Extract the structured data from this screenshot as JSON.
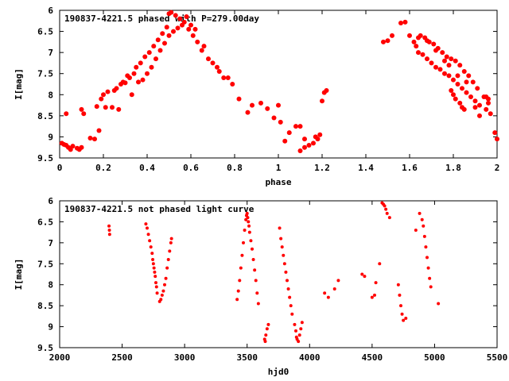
{
  "chart_data": [
    {
      "type": "scatter",
      "title": "190837-4221.5 phased with P=279.00day",
      "xlabel": "phase",
      "ylabel": "I[mag]",
      "xlim": [
        0,
        2
      ],
      "ylim": [
        9.5,
        6
      ],
      "y_inverted": true,
      "grid": false,
      "marker_color": "#ff0000",
      "marker": "filled-circle",
      "xticks": [
        "0",
        "0.2",
        "0.4",
        "0.6",
        "0.8",
        "1",
        "1.2",
        "1.4",
        "1.6",
        "1.8",
        "2"
      ],
      "yticks": [
        "6",
        "6.5",
        "7",
        "7.5",
        "8",
        "8.5",
        "9",
        "9.5"
      ],
      "series": [
        {
          "points": [
            [
              0.01,
              9.15
            ],
            [
              0.02,
              9.18
            ],
            [
              0.03,
              9.2
            ],
            [
              0.04,
              9.25
            ],
            [
              0.05,
              9.3
            ],
            [
              0.06,
              9.22
            ],
            [
              0.08,
              9.27
            ],
            [
              0.09,
              9.3
            ],
            [
              0.1,
              9.25
            ],
            [
              0.03,
              8.45
            ],
            [
              0.1,
              8.35
            ],
            [
              0.11,
              8.45
            ],
            [
              0.14,
              9.03
            ],
            [
              0.16,
              9.05
            ],
            [
              0.17,
              8.28
            ],
            [
              0.18,
              8.85
            ],
            [
              0.19,
              8.1
            ],
            [
              0.2,
              8.0
            ],
            [
              0.21,
              8.3
            ],
            [
              0.22,
              7.93
            ],
            [
              0.24,
              8.3
            ],
            [
              0.25,
              7.9
            ],
            [
              0.26,
              7.85
            ],
            [
              0.27,
              8.35
            ],
            [
              0.28,
              7.75
            ],
            [
              0.29,
              7.7
            ],
            [
              0.3,
              7.72
            ],
            [
              0.31,
              7.55
            ],
            [
              0.32,
              7.6
            ],
            [
              0.33,
              8.0
            ],
            [
              0.34,
              7.5
            ],
            [
              0.35,
              7.35
            ],
            [
              0.36,
              7.7
            ],
            [
              0.37,
              7.25
            ],
            [
              0.38,
              7.65
            ],
            [
              0.39,
              7.1
            ],
            [
              0.4,
              7.5
            ],
            [
              0.41,
              7.0
            ],
            [
              0.42,
              7.35
            ],
            [
              0.43,
              6.85
            ],
            [
              0.44,
              7.15
            ],
            [
              0.45,
              6.7
            ],
            [
              0.46,
              6.95
            ],
            [
              0.47,
              6.55
            ],
            [
              0.48,
              6.78
            ],
            [
              0.49,
              6.4
            ],
            [
              0.5,
              6.6
            ],
            [
              0.5,
              6.08
            ],
            [
              0.51,
              6.05
            ],
            [
              0.52,
              6.5
            ],
            [
              0.53,
              6.12
            ],
            [
              0.54,
              6.42
            ],
            [
              0.55,
              6.2
            ],
            [
              0.56,
              6.35
            ],
            [
              0.57,
              6.28
            ],
            [
              0.58,
              6.15
            ],
            [
              0.59,
              6.45
            ],
            [
              0.6,
              6.35
            ],
            [
              0.61,
              6.6
            ],
            [
              0.62,
              6.45
            ],
            [
              0.63,
              6.75
            ],
            [
              0.65,
              6.95
            ],
            [
              0.66,
              6.85
            ],
            [
              0.68,
              7.15
            ],
            [
              0.7,
              7.25
            ],
            [
              0.72,
              7.35
            ],
            [
              0.73,
              7.45
            ],
            [
              0.75,
              7.6
            ],
            [
              0.77,
              7.6
            ],
            [
              0.79,
              7.75
            ],
            [
              0.82,
              8.1
            ],
            [
              0.86,
              8.42
            ],
            [
              0.88,
              8.25
            ],
            [
              0.92,
              8.2
            ],
            [
              0.95,
              8.33
            ],
            [
              0.98,
              8.55
            ],
            [
              1.0,
              8.25
            ],
            [
              1.01,
              8.65
            ],
            [
              1.03,
              9.1
            ],
            [
              1.05,
              8.9
            ],
            [
              1.08,
              8.75
            ],
            [
              1.1,
              8.75
            ],
            [
              1.1,
              9.33
            ],
            [
              1.12,
              9.05
            ],
            [
              1.12,
              9.25
            ],
            [
              1.14,
              9.2
            ],
            [
              1.16,
              9.15
            ],
            [
              1.17,
              9.0
            ],
            [
              1.18,
              9.05
            ],
            [
              1.19,
              8.95
            ],
            [
              1.2,
              8.15
            ],
            [
              1.21,
              7.95
            ],
            [
              1.22,
              7.9
            ],
            [
              1.48,
              6.75
            ],
            [
              1.5,
              6.72
            ],
            [
              1.52,
              6.6
            ],
            [
              1.56,
              6.3
            ],
            [
              1.58,
              6.28
            ],
            [
              1.6,
              6.6
            ],
            [
              1.62,
              6.75
            ],
            [
              1.63,
              6.85
            ],
            [
              1.64,
              7.0
            ],
            [
              1.65,
              6.6
            ],
            [
              1.66,
              7.05
            ],
            [
              1.67,
              6.65
            ],
            [
              1.68,
              7.15
            ],
            [
              1.69,
              6.75
            ],
            [
              1.7,
              7.25
            ],
            [
              1.71,
              6.8
            ],
            [
              1.72,
              7.35
            ],
            [
              1.73,
              6.9
            ],
            [
              1.74,
              7.4
            ],
            [
              1.75,
              7.0
            ],
            [
              1.76,
              7.5
            ],
            [
              1.77,
              7.1
            ],
            [
              1.78,
              7.55
            ],
            [
              1.79,
              7.15
            ],
            [
              1.8,
              7.65
            ],
            [
              1.81,
              7.2
            ],
            [
              1.82,
              7.75
            ],
            [
              1.83,
              7.3
            ],
            [
              1.84,
              7.85
            ],
            [
              1.85,
              7.45
            ],
            [
              1.86,
              7.95
            ],
            [
              1.87,
              7.55
            ],
            [
              1.88,
              8.05
            ],
            [
              1.89,
              7.7
            ],
            [
              1.9,
              8.15
            ],
            [
              1.91,
              7.85
            ],
            [
              1.92,
              8.25
            ],
            [
              1.94,
              8.05
            ],
            [
              1.95,
              8.35
            ],
            [
              1.96,
              8.1
            ],
            [
              1.97,
              8.45
            ],
            [
              1.99,
              8.9
            ],
            [
              2.0,
              9.05
            ],
            [
              1.64,
              6.65
            ],
            [
              1.68,
              6.72
            ],
            [
              1.72,
              6.95
            ],
            [
              1.76,
              7.2
            ],
            [
              1.78,
              7.3
            ],
            [
              1.82,
              7.55
            ],
            [
              1.86,
              7.7
            ],
            [
              1.9,
              8.3
            ],
            [
              1.92,
              8.5
            ],
            [
              1.95,
              8.05
            ],
            [
              1.96,
              8.2
            ],
            [
              1.8,
              8.0
            ],
            [
              1.79,
              7.9
            ],
            [
              1.81,
              8.1
            ],
            [
              1.83,
              8.2
            ],
            [
              1.84,
              8.3
            ],
            [
              1.85,
              8.35
            ]
          ]
        }
      ]
    },
    {
      "type": "scatter",
      "title": "190837-4221.5 not phased light curve",
      "xlabel": "hjd0",
      "ylabel": "I[mag]",
      "xlim": [
        2000,
        5500
      ],
      "ylim": [
        9.5,
        6
      ],
      "y_inverted": true,
      "grid": false,
      "marker_color": "#ff0000",
      "marker": "filled-circle",
      "xticks": [
        "2000",
        "2500",
        "3000",
        "3500",
        "4000",
        "4500",
        "5000",
        "5500"
      ],
      "yticks": [
        "6",
        "6.5",
        "7",
        "7.5",
        "8",
        "8.5",
        "9",
        "9.5"
      ],
      "series": [
        {
          "points": [
            [
              2395,
              6.6
            ],
            [
              2398,
              6.7
            ],
            [
              2400,
              6.8
            ],
            [
              2690,
              6.55
            ],
            [
              2700,
              6.65
            ],
            [
              2710,
              6.8
            ],
            [
              2720,
              6.95
            ],
            [
              2730,
              7.1
            ],
            [
              2740,
              7.25
            ],
            [
              2745,
              7.4
            ],
            [
              2750,
              7.5
            ],
            [
              2755,
              7.6
            ],
            [
              2760,
              7.7
            ],
            [
              2765,
              7.8
            ],
            [
              2770,
              7.95
            ],
            [
              2775,
              8.05
            ],
            [
              2780,
              8.2
            ],
            [
              2800,
              8.4
            ],
            [
              2810,
              8.35
            ],
            [
              2820,
              8.25
            ],
            [
              2830,
              8.15
            ],
            [
              2840,
              8.0
            ],
            [
              2850,
              7.85
            ],
            [
              2860,
              7.6
            ],
            [
              2870,
              7.4
            ],
            [
              2880,
              7.2
            ],
            [
              2890,
              7.0
            ],
            [
              2895,
              6.9
            ],
            [
              3420,
              8.35
            ],
            [
              3430,
              8.15
            ],
            [
              3440,
              7.9
            ],
            [
              3450,
              7.6
            ],
            [
              3460,
              7.3
            ],
            [
              3470,
              7.0
            ],
            [
              3480,
              6.7
            ],
            [
              3490,
              6.45
            ],
            [
              3495,
              6.35
            ],
            [
              3500,
              6.3
            ],
            [
              3505,
              6.4
            ],
            [
              3510,
              6.5
            ],
            [
              3515,
              6.6
            ],
            [
              3520,
              6.75
            ],
            [
              3530,
              6.95
            ],
            [
              3540,
              7.15
            ],
            [
              3550,
              7.4
            ],
            [
              3560,
              7.65
            ],
            [
              3570,
              7.9
            ],
            [
              3580,
              8.2
            ],
            [
              3590,
              8.45
            ],
            [
              3640,
              9.3
            ],
            [
              3645,
              9.35
            ],
            [
              3650,
              9.2
            ],
            [
              3660,
              9.05
            ],
            [
              3670,
              8.95
            ],
            [
              3760,
              6.65
            ],
            [
              3770,
              6.9
            ],
            [
              3780,
              7.1
            ],
            [
              3790,
              7.3
            ],
            [
              3800,
              7.5
            ],
            [
              3810,
              7.7
            ],
            [
              3820,
              7.9
            ],
            [
              3830,
              8.1
            ],
            [
              3840,
              8.3
            ],
            [
              3850,
              8.5
            ],
            [
              3860,
              8.7
            ],
            [
              3880,
              8.95
            ],
            [
              3890,
              9.1
            ],
            [
              3895,
              9.25
            ],
            [
              3900,
              9.3
            ],
            [
              3910,
              9.35
            ],
            [
              3920,
              9.2
            ],
            [
              3930,
              9.05
            ],
            [
              3940,
              8.9
            ],
            [
              4120,
              8.2
            ],
            [
              4150,
              8.3
            ],
            [
              4200,
              8.1
            ],
            [
              4230,
              7.9
            ],
            [
              4420,
              7.75
            ],
            [
              4440,
              7.8
            ],
            [
              4500,
              8.3
            ],
            [
              4520,
              8.25
            ],
            [
              4530,
              7.95
            ],
            [
              4560,
              7.5
            ],
            [
              4580,
              6.05
            ],
            [
              4590,
              6.08
            ],
            [
              4600,
              6.12
            ],
            [
              4610,
              6.2
            ],
            [
              4620,
              6.3
            ],
            [
              4640,
              6.4
            ],
            [
              4710,
              8.0
            ],
            [
              4720,
              8.25
            ],
            [
              4730,
              8.5
            ],
            [
              4740,
              8.7
            ],
            [
              4750,
              8.85
            ],
            [
              4770,
              8.8
            ],
            [
              4850,
              6.7
            ],
            [
              4880,
              6.3
            ],
            [
              4900,
              6.45
            ],
            [
              4910,
              6.6
            ],
            [
              4920,
              6.85
            ],
            [
              4930,
              7.1
            ],
            [
              4940,
              7.35
            ],
            [
              4950,
              7.6
            ],
            [
              4960,
              7.85
            ],
            [
              4970,
              8.05
            ],
            [
              5030,
              8.45
            ]
          ]
        }
      ]
    }
  ]
}
